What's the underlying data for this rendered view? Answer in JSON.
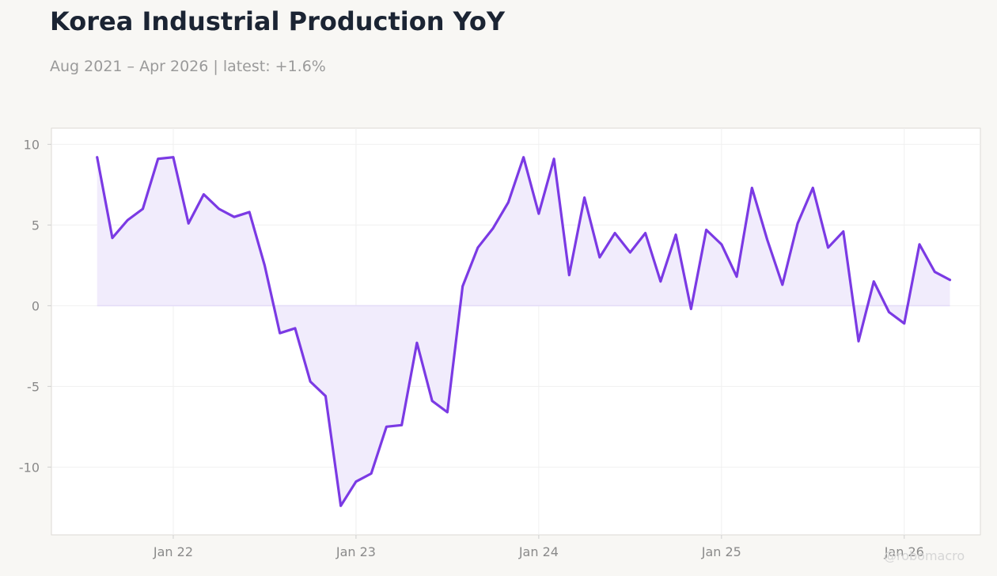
{
  "header": {
    "title": "Korea Industrial Production YoY",
    "subtitle": "Aug 2021 – Apr 2026 | latest: +1.6%"
  },
  "watermark": "@robomacro",
  "colors": {
    "line": "#7b3ae4",
    "fill": "#f1ecfc",
    "background": "#f8f7f4",
    "plot_background": "#ffffff",
    "grid": "#f0f0f0",
    "tick_text": "#8a8a8a"
  },
  "chart_data": {
    "type": "area",
    "title": "Korea Industrial Production YoY",
    "subtitle": "Aug 2021 – Apr 2026 | latest: +1.6%",
    "xlabel": "",
    "ylabel": "",
    "x_start": "2021-08",
    "frequency": "monthly",
    "x_ticks": [
      {
        "date": "2022-01",
        "label": "Jan 22"
      },
      {
        "date": "2023-01",
        "label": "Jan 23"
      },
      {
        "date": "2024-01",
        "label": "Jan 24"
      },
      {
        "date": "2025-01",
        "label": "Jan 25"
      },
      {
        "date": "2026-01",
        "label": "Jan 26"
      }
    ],
    "y_ticks": [
      {
        "value": 10,
        "label": "10"
      },
      {
        "value": 5,
        "label": "5"
      },
      {
        "value": 0,
        "label": "0"
      },
      {
        "value": -5,
        "label": "-5"
      },
      {
        "value": -10,
        "label": "-10"
      }
    ],
    "ylim": [
      -14.2,
      11.0
    ],
    "xlim": [
      "2021-05",
      "2026-06"
    ],
    "grid": true,
    "series": [
      {
        "values": [
          9.2,
          4.2,
          5.3,
          6.0,
          9.1,
          9.2,
          5.1,
          6.9,
          6.0,
          5.5,
          5.8,
          2.5,
          -1.7,
          -1.4,
          -4.7,
          -5.6,
          -12.4,
          -10.9,
          -10.4,
          -7.5,
          -7.4,
          -2.3,
          -5.9,
          -6.6,
          1.2,
          3.6,
          4.8,
          6.4,
          9.2,
          5.7,
          9.1,
          1.9,
          6.7,
          3.0,
          4.5,
          3.3,
          4.5,
          1.5,
          4.4,
          -0.2,
          4.7,
          3.8,
          1.8,
          7.3,
          4.1,
          1.3,
          5.1,
          7.3,
          3.6,
          4.6,
          -2.2,
          1.5,
          -0.4,
          -1.1,
          3.8,
          2.1,
          1.6
        ]
      }
    ]
  }
}
